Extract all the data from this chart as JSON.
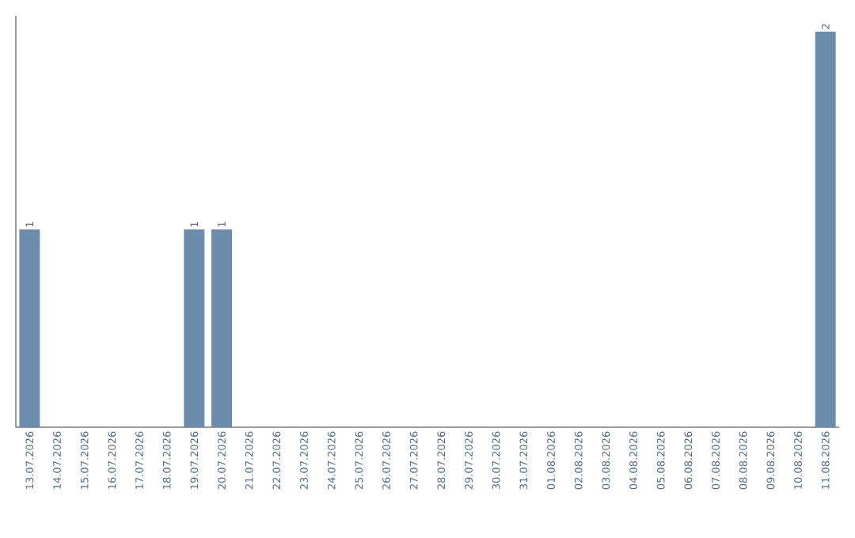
{
  "chart_data": {
    "type": "bar",
    "categories": [
      "13.07.2026",
      "14.07.2026",
      "15.07.2026",
      "16.07.2026",
      "17.07.2026",
      "18.07.2026",
      "19.07.2026",
      "20.07.2026",
      "21.07.2026",
      "22.07.2026",
      "23.07.2026",
      "24.07.2026",
      "25.07.2026",
      "26.07.2026",
      "27.07.2026",
      "28.07.2026",
      "29.07.2026",
      "30.07.2026",
      "31.07.2026",
      "01.08.2026",
      "02.08.2026",
      "03.08.2026",
      "04.08.2026",
      "05.08.2026",
      "06.08.2026",
      "07.08.2026",
      "08.08.2026",
      "09.08.2026",
      "10.08.2026",
      "11.08.2026"
    ],
    "values": [
      1,
      0,
      0,
      0,
      0,
      0,
      1,
      1,
      0,
      0,
      0,
      0,
      0,
      0,
      0,
      0,
      0,
      0,
      0,
      0,
      0,
      0,
      0,
      0,
      0,
      0,
      0,
      0,
      0,
      2
    ],
    "value_labels": [
      "1",
      null,
      null,
      null,
      null,
      null,
      "1",
      "1",
      null,
      null,
      null,
      null,
      null,
      null,
      null,
      null,
      null,
      null,
      null,
      null,
      null,
      null,
      null,
      null,
      null,
      null,
      null,
      null,
      null,
      "2"
    ],
    "color": "#6b8cab",
    "ylim": [
      0,
      2.08
    ],
    "tick_labels": "x"
  }
}
